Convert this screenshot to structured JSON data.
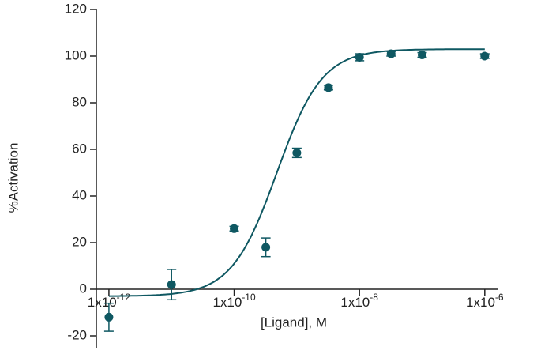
{
  "chart_data": {
    "type": "scatter",
    "x_label": "[Ligand], M",
    "y_label": "%Activation",
    "log_x": true,
    "xlim": [
      6.3e-13,
      1.6e-06
    ],
    "ylim": [
      -20,
      120
    ],
    "xticks": [
      {
        "value": 1e-12,
        "label": "1x10",
        "exponent": "-12"
      },
      {
        "value": 1e-10,
        "label": "1x10",
        "exponent": "-10"
      },
      {
        "value": 1e-08,
        "label": "1x10",
        "exponent": "-8"
      },
      {
        "value": 1e-06,
        "label": "1x10",
        "exponent": "-6"
      }
    ],
    "yticks": [
      -20,
      0,
      20,
      40,
      60,
      80,
      100,
      120
    ],
    "series": [
      {
        "color": "#0f5862",
        "x": [
          1e-12,
          1e-11,
          1e-10,
          3.2e-10,
          1e-09,
          3.2e-09,
          1e-08,
          3.2e-08,
          1e-07,
          1e-06
        ],
        "values": [
          -12,
          2,
          26,
          18,
          58.5,
          86.5,
          99.5,
          101,
          100.5,
          100
        ],
        "errors": [
          6,
          6.5,
          1,
          4,
          2,
          1,
          1.5,
          1,
          1,
          1
        ]
      }
    ],
    "fit": {
      "color": "#0f5862",
      "bottom": -3,
      "top": 103,
      "ec50": 4.8e-10,
      "hill": 1.2,
      "x_from": 1e-12,
      "x_to": 1e-06
    }
  }
}
